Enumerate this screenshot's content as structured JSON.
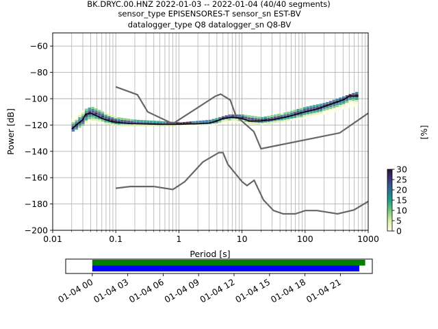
{
  "title_lines": [
    "BK.DRYC.00.HNZ   2022-01-03 -- 2022-01-04  (40/40 segments)",
    "sensor_type EPISENSORES-T sensor_sn EST-BV",
    "datalogger_type Q8 datalogger_sn Q8-BV"
  ],
  "chart_data": {
    "type": "line",
    "xlabel": "Period [s]",
    "ylabel": "Power [dB]",
    "x_scale": "log",
    "xlim": [
      0.01,
      1000
    ],
    "ylim": [
      -200,
      -50
    ],
    "x_ticks": [
      {
        "value": 0.01,
        "label": "0.01"
      },
      {
        "value": 0.1,
        "label": "0.1"
      },
      {
        "value": 1,
        "label": "1"
      },
      {
        "value": 10,
        "label": "10"
      },
      {
        "value": 100,
        "label": "100"
      },
      {
        "value": 1000,
        "label": "1000"
      }
    ],
    "y_ticks": [
      -60,
      -80,
      -100,
      -120,
      -140,
      -160,
      -180,
      -200
    ],
    "grid": true,
    "noise_model_high": [
      [
        0.1,
        -91
      ],
      [
        0.22,
        -97
      ],
      [
        0.32,
        -110
      ],
      [
        0.8,
        -119
      ],
      [
        3.8,
        -98
      ],
      [
        4.6,
        -96.5
      ],
      [
        6.5,
        -101
      ],
      [
        8,
        -113
      ],
      [
        15.4,
        -125
      ],
      [
        20,
        -138
      ],
      [
        354,
        -126
      ],
      [
        1000,
        -111
      ]
    ],
    "noise_model_low": [
      [
        0.1,
        -168
      ],
      [
        0.17,
        -166.7
      ],
      [
        0.4,
        -166.7
      ],
      [
        0.8,
        -169
      ],
      [
        1.24,
        -163
      ],
      [
        2.4,
        -148
      ],
      [
        4.3,
        -141
      ],
      [
        5,
        -141
      ],
      [
        6,
        -150
      ],
      [
        10,
        -163
      ],
      [
        12,
        -166
      ],
      [
        15.6,
        -162
      ],
      [
        21.9,
        -177
      ],
      [
        31.6,
        -185
      ],
      [
        45,
        -187.5
      ],
      [
        70,
        -187.5
      ],
      [
        101,
        -185
      ],
      [
        154,
        -185
      ],
      [
        328,
        -187.5
      ],
      [
        600,
        -184.5
      ],
      [
        1000,
        -178
      ]
    ],
    "mode_line": [
      [
        0.02,
        -123
      ],
      [
        0.025,
        -119
      ],
      [
        0.03,
        -116
      ],
      [
        0.033,
        -112
      ],
      [
        0.04,
        -111
      ],
      [
        0.05,
        -113
      ],
      [
        0.06,
        -115
      ],
      [
        0.08,
        -117
      ],
      [
        0.1,
        -118
      ],
      [
        0.2,
        -119
      ],
      [
        0.5,
        -119.5
      ],
      [
        1,
        -119.5
      ],
      [
        2,
        -119
      ],
      [
        3,
        -118.5
      ],
      [
        4,
        -117
      ],
      [
        5,
        -115
      ],
      [
        7,
        -114
      ],
      [
        10,
        -115
      ],
      [
        13,
        -117
      ],
      [
        20,
        -117
      ],
      [
        30,
        -116
      ],
      [
        50,
        -114
      ],
      [
        70,
        -112
      ],
      [
        100,
        -110
      ],
      [
        150,
        -108
      ],
      [
        200,
        -106
      ],
      [
        300,
        -103
      ],
      [
        400,
        -101
      ],
      [
        500,
        -98
      ],
      [
        700,
        -98
      ]
    ],
    "psd_spread": [
      [
        0.02,
        -125,
        -115
      ],
      [
        0.03,
        -120,
        -108
      ],
      [
        0.04,
        -118,
        -106
      ],
      [
        0.06,
        -119,
        -110
      ],
      [
        0.1,
        -121,
        -114
      ],
      [
        0.2,
        -121,
        -116
      ],
      [
        0.5,
        -121,
        -117
      ],
      [
        1,
        -121,
        -118
      ],
      [
        3,
        -121,
        -116
      ],
      [
        6,
        -118,
        -112
      ],
      [
        10,
        -119,
        -112
      ],
      [
        20,
        -120,
        -114
      ],
      [
        50,
        -117,
        -110
      ],
      [
        100,
        -115,
        -106
      ],
      [
        200,
        -112,
        -103
      ],
      [
        400,
        -108,
        -98
      ],
      [
        700,
        -105,
        -94
      ]
    ],
    "colorbar": {
      "label": "[%]",
      "min": 0,
      "max": 30,
      "ticks": [
        0,
        5,
        10,
        15,
        20,
        25,
        30
      ],
      "colors": [
        "#ffffe5",
        "#d9f0a3",
        "#78c679",
        "#1d9e8a",
        "#2a6f97",
        "#3b3a7a",
        "#2b0f3b"
      ]
    }
  },
  "timeline": {
    "tick_labels": [
      "01-04 00",
      "01-04 03",
      "01-04 06",
      "01-04 09",
      "01-04 12",
      "01-04 15",
      "01-04 18",
      "01-04 21"
    ],
    "range_hours": [
      -2.25,
      23.7
    ],
    "bars": [
      {
        "color": "#008000",
        "start_hours": 0,
        "end_hours": 23.1
      },
      {
        "color": "#0000ff",
        "start_hours": 0,
        "end_hours": 22.6
      }
    ]
  }
}
